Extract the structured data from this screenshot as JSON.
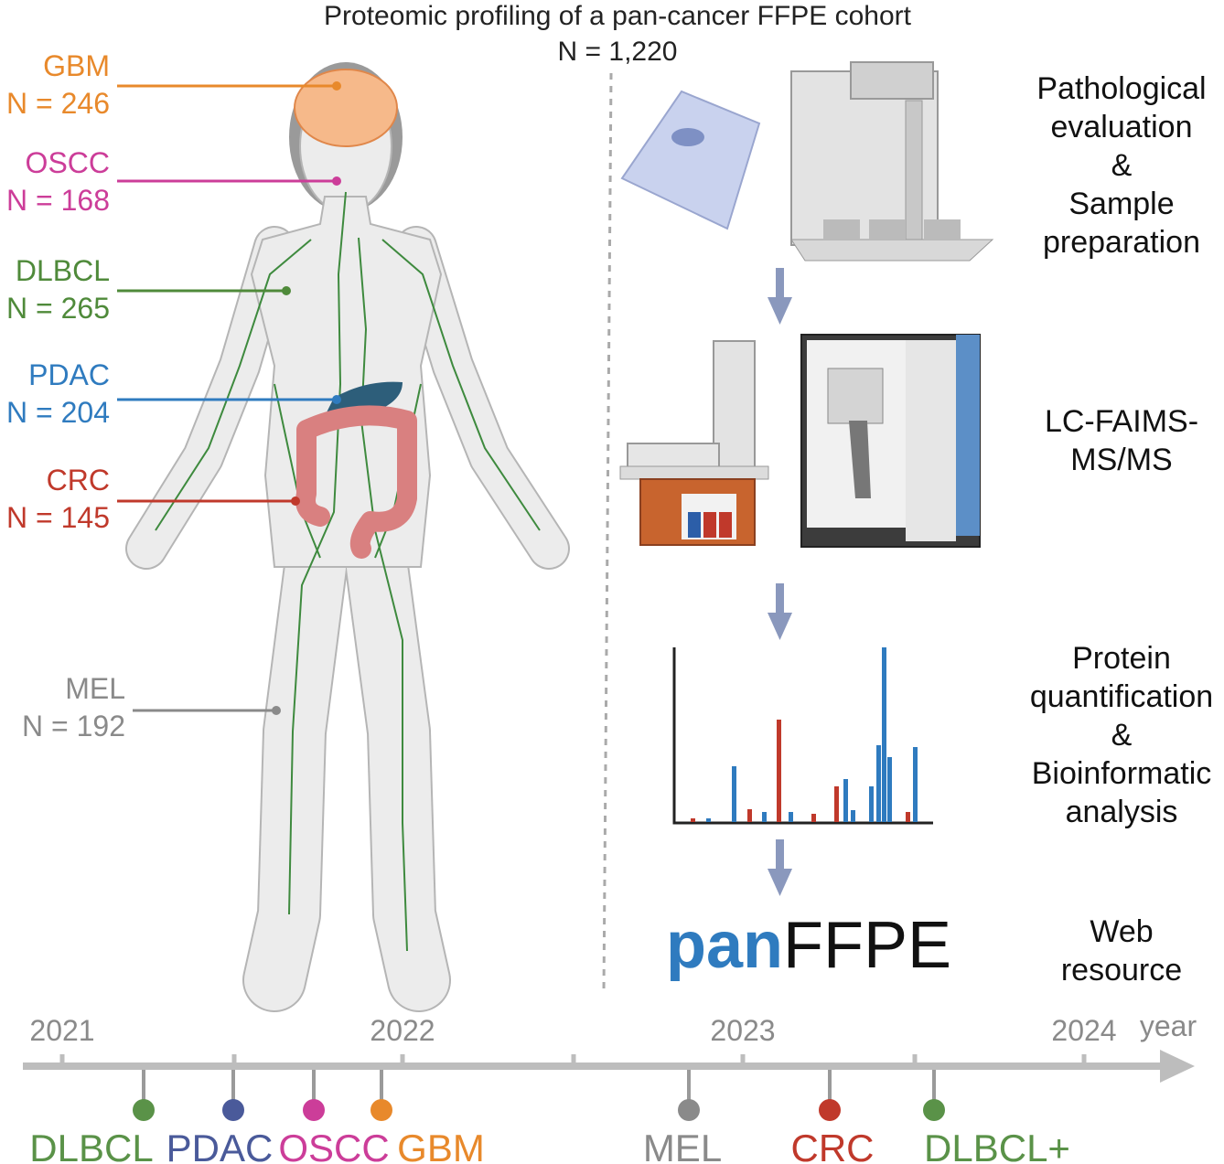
{
  "title": {
    "lines": [
      "Proteomic profiling of a pan-cancer FFPE cohort",
      "N = 1,220"
    ]
  },
  "cohorts": [
    {
      "name": "GBM",
      "count": "N = 246"
    },
    {
      "name": "OSCC",
      "count": "N = 168"
    },
    {
      "name": "DLBCL",
      "count": "N = 265"
    },
    {
      "name": "PDAC",
      "count": "N = 204"
    },
    {
      "name": "CRC",
      "count": "N = 145"
    },
    {
      "name": "MEL",
      "count": "N = 192"
    }
  ],
  "workflow": [
    {
      "lines": [
        "Pathological",
        "evaluation",
        "&",
        "Sample",
        "preparation"
      ]
    },
    {
      "lines": [
        "LC-FAIMS-",
        "MS/MS"
      ]
    },
    {
      "lines": [
        "Protein",
        "quantification",
        "&",
        "Bioinformatic",
        "analysis"
      ]
    },
    {
      "lines": [
        "Web",
        "resource"
      ]
    }
  ],
  "brand": {
    "prefix": "pan",
    "suffix": "FFPE"
  },
  "timeline": {
    "years": [
      "2021",
      "2022",
      "2023",
      "2024"
    ],
    "axis_label": "year",
    "events": [
      "DLBCL",
      "PDAC",
      "OSCC",
      "GBM",
      "MEL",
      "CRC",
      "DLBCL+"
    ]
  }
}
